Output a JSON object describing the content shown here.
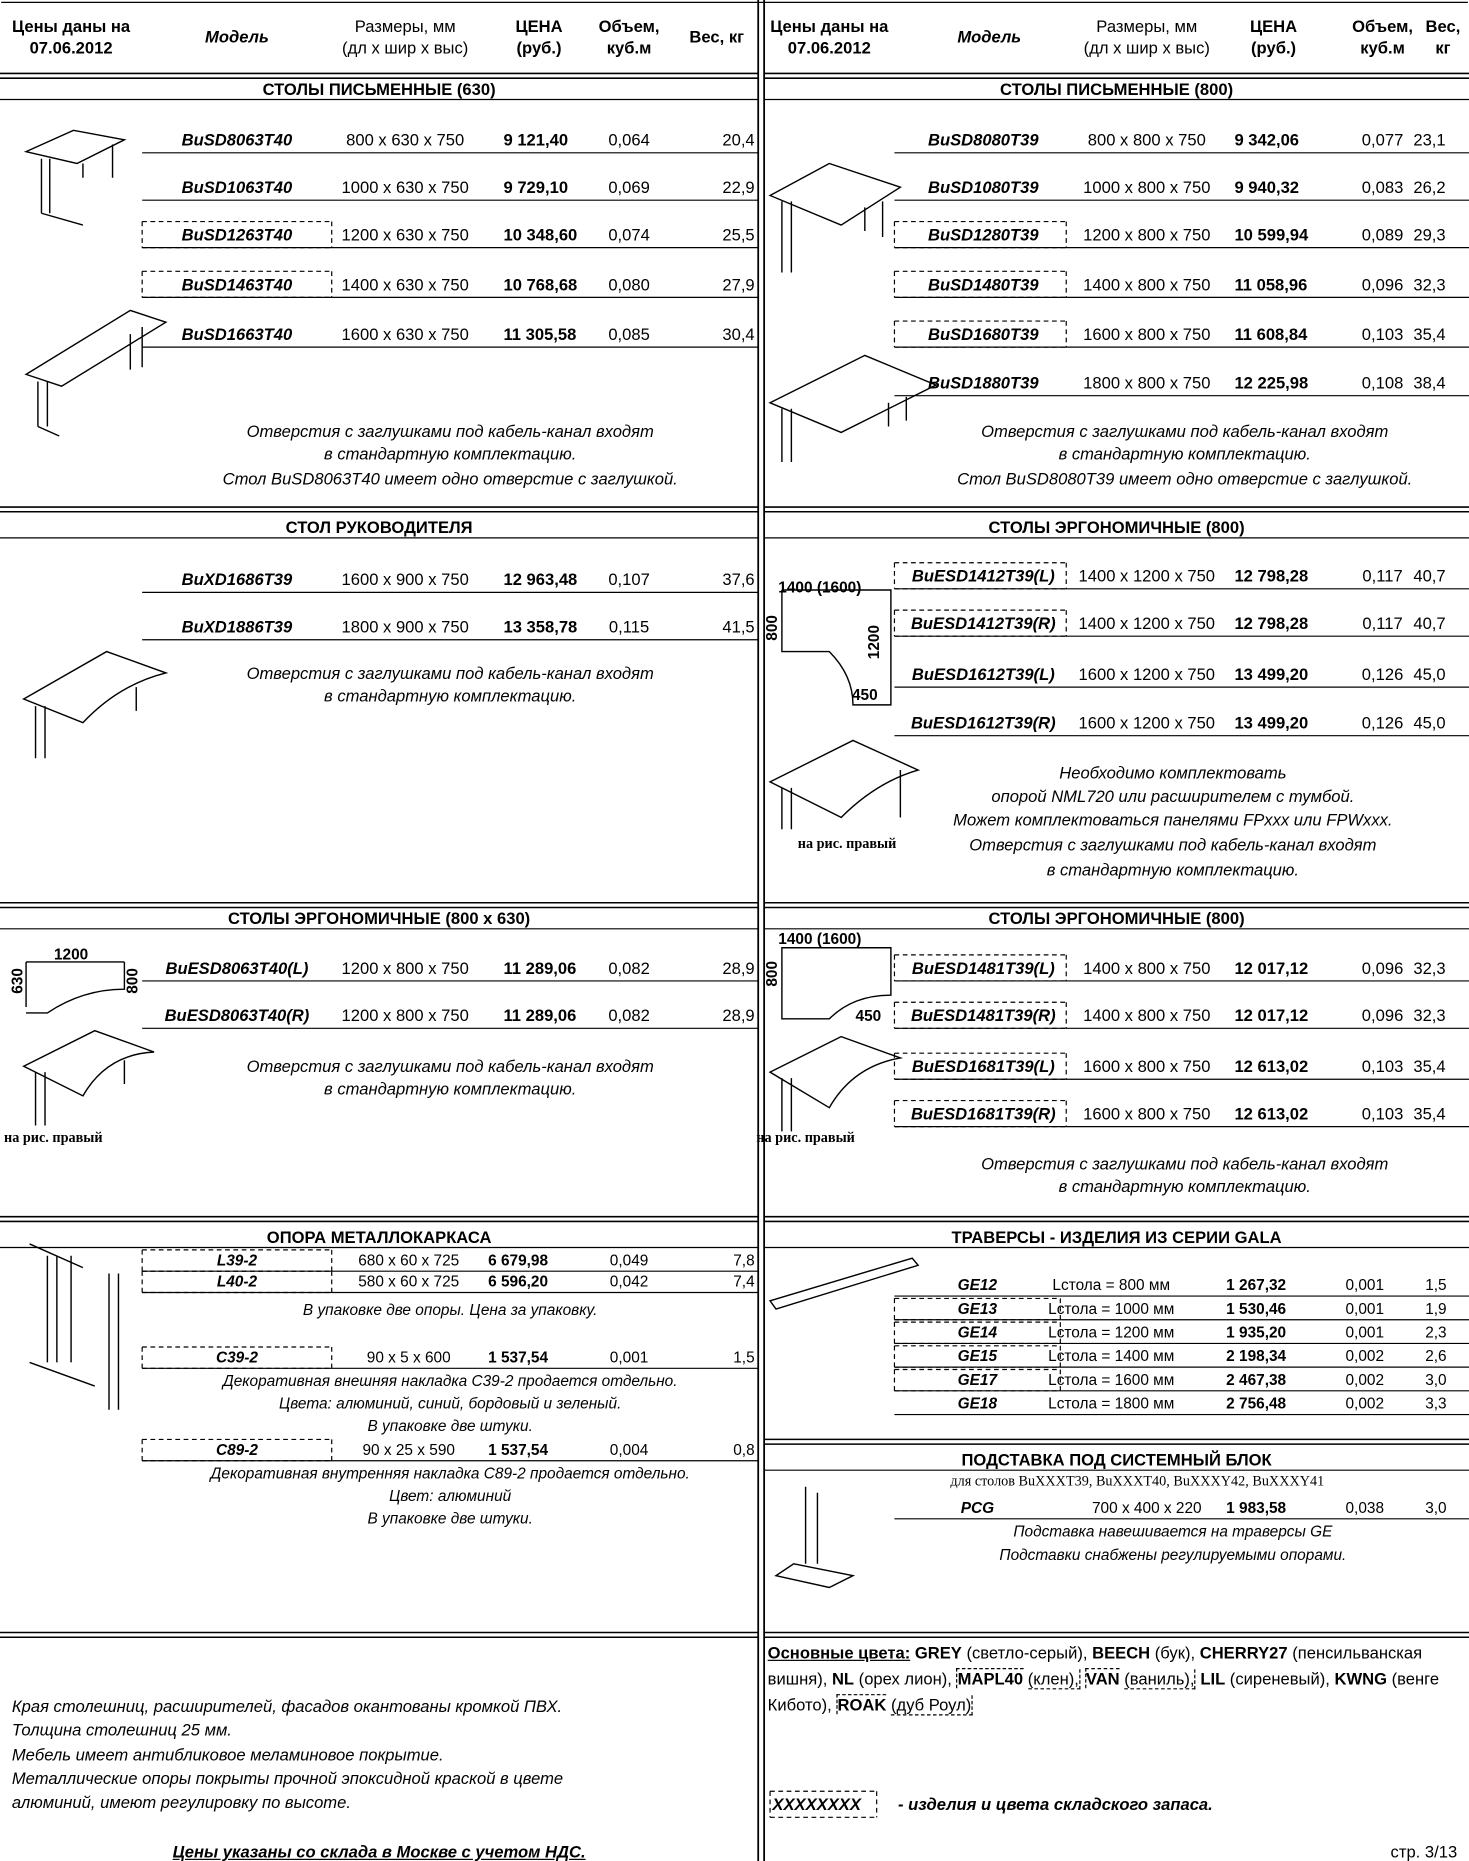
{
  "headers": [
    [
      [
        "Цены даны на",
        "07.06.2012"
      ],
      [
        "Модель"
      ],
      [
        "Размеры, мм",
        "(дл х шир х выс)"
      ],
      [
        "ЦЕНА",
        "(руб.)"
      ],
      [
        "Объем,",
        "куб.м"
      ],
      [
        "Вес, кг"
      ]
    ],
    [
      [
        "Цены даны на",
        "07.06.2012"
      ],
      [
        "Модель"
      ],
      [
        "Размеры, мм",
        "(дл х шир х выс)"
      ],
      [
        "ЦЕНА",
        "(руб.)"
      ],
      [
        "Объем,",
        "куб.м"
      ],
      [
        "Вес,",
        "кг"
      ]
    ]
  ],
  "left": [
    {
      "title": "СТОЛЫ ПИСЬМЕННЫЕ (630)",
      "groups": [
        {
          "rows": [
            {
              "model": "BuSD8063T40",
              "size": "800 x 630 x 750",
              "price": "9 121,40",
              "volume": "0,064",
              "weight": "20,4",
              "stock": false
            },
            {
              "model": "BuSD1063T40",
              "size": "1000 x 630 x 750",
              "price": "9 729,10",
              "volume": "0,069",
              "weight": "22,9",
              "stock": false
            },
            {
              "model": "BuSD1263T40",
              "size": "1200 x 630 x 750",
              "price": "10 348,60",
              "volume": "0,074",
              "weight": "25,5",
              "stock": true
            },
            {
              "model": "BuSD1463T40",
              "size": "1400 x 630 x 750",
              "price": "10 768,68",
              "volume": "0,080",
              "weight": "27,9",
              "stock": true
            },
            {
              "model": "BuSD1663T40",
              "size": "1600 x 630 x 750",
              "price": "11 305,58",
              "volume": "0,085",
              "weight": "30,4",
              "stock": false
            }
          ],
          "notes": [
            "Отверстия с заглушками под кабель-канал входят",
            "в стандартную комплектацию.",
            "Стол BuSD8063T40 имеет одно отверстие с заглушкой."
          ]
        }
      ]
    },
    {
      "title": "СТОЛ РУКОВОДИТЕЛЯ",
      "groups": [
        {
          "rows": [
            {
              "model": "BuXD1686T39",
              "size": "1600 x 900 x 750",
              "price": "12 963,48",
              "volume": "0,107",
              "weight": "37,6",
              "stock": false
            },
            {
              "model": "BuXD1886T39",
              "size": "1800 x 900 x 750",
              "price": "13 358,78",
              "volume": "0,115",
              "weight": "41,5",
              "stock": false
            }
          ],
          "notes": [
            "Отверстия с заглушками под кабель-канал входят",
            "в стандартную комплектацию."
          ]
        }
      ]
    },
    {
      "title": "СТОЛЫ ЭРГОНОМИЧНЫЕ (800 x 630)",
      "figure_labels": [
        "1200",
        "630",
        "800",
        "на рис. правый"
      ],
      "groups": [
        {
          "rows": [
            {
              "model": "BuESD8063T40(L)",
              "size": "1200 x 800 x 750",
              "price": "11 289,06",
              "volume": "0,082",
              "weight": "28,9",
              "stock": false
            },
            {
              "model": "BuESD8063T40(R)",
              "size": "1200 x 800 x 750",
              "price": "11 289,06",
              "volume": "0,082",
              "weight": "28,9",
              "stock": false
            }
          ],
          "notes": [
            "Отверстия с заглушками под кабель-канал входят",
            "в стандартную комплектацию."
          ]
        }
      ]
    },
    {
      "title": "ОПОРА МЕТАЛЛОКАРКАСА",
      "groups": [
        {
          "rows": [
            {
              "model": "L39-2",
              "size": "680 x 60 x 725",
              "price": "6 679,98",
              "volume": "0,049",
              "weight": "7,8",
              "stock": true
            },
            {
              "model": "L40-2",
              "size": "580 x 60 x 725",
              "price": "6 596,20",
              "volume": "0,042",
              "weight": "7,4",
              "stock": true
            }
          ],
          "notes": [
            "В упаковке две опоры. Цена за упаковку."
          ]
        },
        {
          "rows": [
            {
              "model": "C39-2",
              "size": "90 x 5 x 600",
              "price": "1 537,54",
              "volume": "0,001",
              "weight": "1,5",
              "stock": true
            }
          ],
          "notes": [
            "Декоративная внешняя накладка С39-2 продается отдельно.",
            "Цвета: алюминий, синий, бордовый и зеленый.",
            "В упаковке две штуки."
          ]
        },
        {
          "rows": [
            {
              "model": "C89-2",
              "size": "90 x 25 x 590",
              "price": "1 537,54",
              "volume": "0,004",
              "weight": "0,8",
              "stock": true
            }
          ],
          "notes": [
            "Декоративная внутренняя накладка С89-2 продается отдельно.",
            "Цвет: алюминий",
            "В упаковке две штуки."
          ]
        }
      ]
    }
  ],
  "right": [
    {
      "title": "СТОЛЫ ПИСЬМЕННЫЕ (800)",
      "groups": [
        {
          "rows": [
            {
              "model": "BuSD8080T39",
              "size": "800 x 800 x 750",
              "price": "9 342,06",
              "volume": "0,077",
              "weight": "23,1",
              "stock": false
            },
            {
              "model": "BuSD1080T39",
              "size": "1000 x 800 x 750",
              "price": "9 940,32",
              "volume": "0,083",
              "weight": "26,2",
              "stock": false
            },
            {
              "model": "BuSD1280T39",
              "size": "1200 x 800 x 750",
              "price": "10 599,94",
              "volume": "0,089",
              "weight": "29,3",
              "stock": true
            },
            {
              "model": "BuSD1480T39",
              "size": "1400 x 800 x 750",
              "price": "11 058,96",
              "volume": "0,096",
              "weight": "32,3",
              "stock": true
            },
            {
              "model": "BuSD1680T39",
              "size": "1600 x 800 x 750",
              "price": "11 608,84",
              "volume": "0,103",
              "weight": "35,4",
              "stock": true
            },
            {
              "model": "BuSD1880T39",
              "size": "1800 x 800 x 750",
              "price": "12 225,98",
              "volume": "0,108",
              "weight": "38,4",
              "stock": false
            }
          ],
          "notes": [
            "Отверстия с заглушками под кабель-канал входят",
            "в стандартную комплектацию.",
            "Стол BuSD8080T39 имеет одно отверстие с заглушкой."
          ]
        }
      ]
    },
    {
      "title": "СТОЛЫ ЭРГОНОМИЧНЫЕ (800)",
      "figure_labels": [
        "1400 (1600)",
        "800",
        "1200",
        "450",
        "на рис. правый"
      ],
      "groups": [
        {
          "rows": [
            {
              "model": "BuESD1412T39(L)",
              "size": "1400 x 1200 x 750",
              "price": "12 798,28",
              "volume": "0,117",
              "weight": "40,7",
              "stock": true
            },
            {
              "model": "BuESD1412T39(R)",
              "size": "1400 x 1200 x 750",
              "price": "12 798,28",
              "volume": "0,117",
              "weight": "40,7",
              "stock": true
            },
            {
              "model": "BuESD1612T39(L)",
              "size": "1600 x 1200 x 750",
              "price": "13 499,20",
              "volume": "0,126",
              "weight": "45,0",
              "stock": false
            },
            {
              "model": "BuESD1612T39(R)",
              "size": "1600 x 1200 x 750",
              "price": "13 499,20",
              "volume": "0,126",
              "weight": "45,0",
              "stock": false
            }
          ],
          "notes": [
            "Необходимо комплектовать",
            "опорой NML720 или расширителем с тумбой.",
            "Может комплектоваться панелями FPxxx или FPWxxx.",
            "Отверстия с заглушками под кабель-канал входят",
            "в стандартную комплектацию."
          ]
        }
      ]
    },
    {
      "title": "СТОЛЫ ЭРГОНОМИЧНЫЕ (800)",
      "figure_labels": [
        "1400 (1600)",
        "800",
        "450",
        "на рис. правый"
      ],
      "groups": [
        {
          "rows": [
            {
              "model": "BuESD1481T39(L)",
              "size": "1400 x 800 x 750",
              "price": "12 017,12",
              "volume": "0,096",
              "weight": "32,3",
              "stock": true
            },
            {
              "model": "BuESD1481T39(R)",
              "size": "1400 x 800 x 750",
              "price": "12 017,12",
              "volume": "0,096",
              "weight": "32,3",
              "stock": true
            },
            {
              "model": "BuESD1681T39(L)",
              "size": "1600 x 800 x 750",
              "price": "12 613,02",
              "volume": "0,103",
              "weight": "35,4",
              "stock": true
            },
            {
              "model": "BuESD1681T39(R)",
              "size": "1600 x 800 x 750",
              "price": "12 613,02",
              "volume": "0,103",
              "weight": "35,4",
              "stock": true
            }
          ],
          "notes": [
            "Отверстия с заглушками под кабель-канал входят",
            "в стандартную комплектацию."
          ]
        }
      ]
    },
    {
      "title": "ТРАВЕРСЫ - ИЗДЕЛИЯ ИЗ СЕРИИ GALA",
      "groups": [
        {
          "rows": [
            {
              "model": "GE12",
              "size": "Lстола = 800 мм",
              "price": "1 267,32",
              "volume": "0,001",
              "weight": "1,5",
              "stock": false
            },
            {
              "model": "GE13",
              "size": "Lстола = 1000 мм",
              "price": "1 530,46",
              "volume": "0,001",
              "weight": "1,9",
              "stock": true
            },
            {
              "model": "GE14",
              "size": "Lстола = 1200 мм",
              "price": "1 935,20",
              "volume": "0,001",
              "weight": "2,3",
              "stock": true
            },
            {
              "model": "GE15",
              "size": "Lстола = 1400 мм",
              "price": "2 198,34",
              "volume": "0,002",
              "weight": "2,6",
              "stock": true
            },
            {
              "model": "GE17",
              "size": "Lстола = 1600 мм",
              "price": "2 467,38",
              "volume": "0,002",
              "weight": "3,0",
              "stock": true
            },
            {
              "model": "GE18",
              "size": "Lстола = 1800 мм",
              "price": "2 756,48",
              "volume": "0,002",
              "weight": "3,3",
              "stock": false
            }
          ],
          "notes": []
        }
      ]
    },
    {
      "title": "ПОДСТАВКА ПОД СИСТЕМНЫЙ БЛОК",
      "subtitle": "для столов BuXXXT39, BuXXXT40, BuXXXY42, BuXXXY41",
      "groups": [
        {
          "rows": [
            {
              "model": "PCG",
              "size": "700 x 400 x 220",
              "price": "1 983,58",
              "volume": "0,038",
              "weight": "3,0",
              "stock": false
            }
          ],
          "notes": [
            "Подставка навешивается на траверсы GE",
            "Подставки снабжены регулируемыми опорами."
          ]
        }
      ]
    }
  ],
  "footer_notes": [
    "Края столешниц, расширителей, фасадов окантованы кромкой ПВХ.",
    "Толщина столешниц 25 мм.",
    "Мебель имеет антибликовое меламиновое покрытие.",
    "Металлические опоры покрыты прочной эпоксидной краской в цвете",
    "алюминий, имеют регулировку по высоте."
  ],
  "footer": "Цены указаны со склада в Москве с учетом НДС.",
  "colors": {
    "label": "Основные цвета:",
    "items": [
      {
        "code": "GREY",
        "name": "(светло-серый),",
        "stock": false
      },
      {
        "code": "BEECH",
        "name": "(бук),",
        "stock": false
      },
      {
        "code": "CHERRY27",
        "name": "(пенсильванская вишня),",
        "stock": false
      },
      {
        "code": "NL",
        "name": "(орех лион),",
        "stock": false
      },
      {
        "code": "MAPL40",
        "name": "(клен),",
        "stock": true
      },
      {
        "code": "VAN",
        "name": "(ваниль),",
        "stock": true
      },
      {
        "code": "LIL",
        "name": "(сиреневый),",
        "stock": false
      },
      {
        "code": "KWNG",
        "name": "(венге Кибото),",
        "stock": false
      },
      {
        "code": "ROAK",
        "name": "(дуб Роул)",
        "stock": true
      }
    ]
  },
  "legend": {
    "sample": "XXXXXXXX",
    "text": "- изделия и цвета складского запаса."
  },
  "page_number": "стр. 3/13"
}
